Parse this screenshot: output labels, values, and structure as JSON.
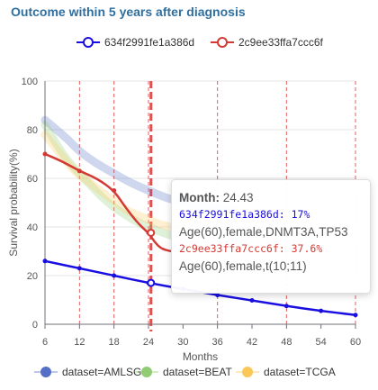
{
  "title": "Outcome within 5 years after diagnosis",
  "colors": {
    "series_blue": "#1a0fe0",
    "series_red": "#d43a34",
    "grid_vline": "#e06060",
    "selected_vline": "#e05050",
    "amlsg": "#5470c6",
    "beat": "#91cc75",
    "tcga": "#fac858"
  },
  "chart_data": {
    "type": "line",
    "title": "Outcome within 5 years after diagnosis",
    "xlabel": "Months",
    "ylabel": "Survival probability(%)",
    "xlim": [
      6,
      60
    ],
    "ylim": [
      0,
      100
    ],
    "x_ticks": [
      "6",
      "12",
      "18",
      "24",
      "30",
      "36",
      "42",
      "48",
      "54",
      "60"
    ],
    "y_ticks": [
      "0",
      "20",
      "40",
      "60",
      "80",
      "100"
    ],
    "vlines": [
      12,
      18,
      24,
      36,
      48,
      60
    ],
    "selected_x": 24.43,
    "legend_top": [
      "634f2991fe1a386d",
      "2c9ee33ffa7ccc6f"
    ],
    "series": [
      {
        "name": "634f2991fe1a386d",
        "color": "#1a0fe0",
        "x": [
          6,
          12,
          18,
          24,
          30,
          36,
          42,
          48,
          54,
          60
        ],
        "values": [
          26,
          23,
          20,
          17,
          14.5,
          12,
          9.8,
          7.5,
          5.5,
          3.8
        ]
      },
      {
        "name": "2c9ee33ffa7ccc6f",
        "color": "#d43a34",
        "x": [
          6,
          9,
          12,
          15,
          18,
          20,
          22,
          23.5,
          24,
          25,
          26,
          27,
          28
        ],
        "values": [
          70,
          67,
          63,
          60,
          55,
          48,
          42,
          38.5,
          37.6,
          34,
          31.5,
          30.5,
          30
        ]
      }
    ],
    "cohort_bands": [
      {
        "name": "dataset=AMLSG",
        "color": "#5470c6",
        "x": [
          6,
          8,
          10,
          12,
          15,
          18,
          21,
          24,
          27,
          30,
          33,
          36,
          39
        ],
        "values": [
          84,
          80,
          76,
          71,
          66,
          62,
          58,
          55,
          52,
          50,
          48.5,
          47.5,
          47
        ]
      },
      {
        "name": "dataset=BEAT",
        "color": "#91cc75",
        "x": [
          6,
          8,
          10,
          12,
          14,
          16,
          18,
          20,
          22,
          24,
          26,
          28,
          30
        ],
        "values": [
          82,
          74,
          67,
          62,
          57,
          52,
          48,
          45,
          42,
          40,
          38,
          36.5,
          35.5
        ]
      },
      {
        "name": "dataset=TCGA",
        "color": "#fac858",
        "x": [
          6,
          8,
          10,
          12,
          14,
          16,
          18,
          20,
          22,
          24,
          26,
          28,
          30
        ],
        "values": [
          78,
          72,
          66,
          61,
          58,
          54,
          51,
          47,
          45,
          43,
          41,
          40,
          39
        ]
      }
    ],
    "legend_bottom": [
      "dataset=AMLSG",
      "dataset=BEAT",
      "dataset=TCGA"
    ]
  },
  "tooltip": {
    "month_label": "Month:",
    "month_value": "24.43",
    "series1_line": "634f2991fe1a386d: 17%",
    "series1_desc": "Age(60),female,DNMT3A,TP53",
    "series2_line": "2c9ee33ffa7ccc6f: 37.6%",
    "series2_desc": "Age(60),female,t(10;11)"
  }
}
